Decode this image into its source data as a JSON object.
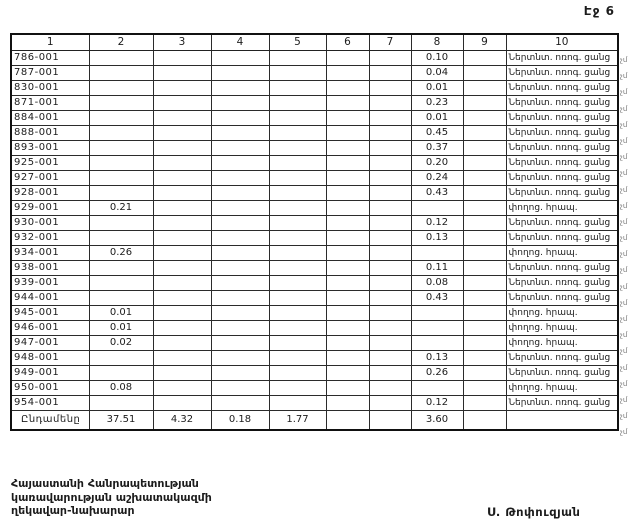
{
  "page": {
    "label": "Էջ 6"
  },
  "table": {
    "headers": [
      "1",
      "2",
      "3",
      "4",
      "5",
      "6",
      "7",
      "8",
      "9",
      "10"
    ],
    "rows": [
      {
        "c1": "786-001",
        "c8": "0.10",
        "c10": "Ներտնտ. ոռոգ. ցանց"
      },
      {
        "c1": "787-001",
        "c8": "0.04",
        "c10": "Ներտնտ. ոռոգ. ցանց"
      },
      {
        "c1": "830-001",
        "c8": "0.01",
        "c10": "Ներտնտ. ոռոգ. ցանց"
      },
      {
        "c1": "871-001",
        "c8": "0.23",
        "c10": "Ներտնտ. ոռոգ. ցանց"
      },
      {
        "c1": "884-001",
        "c8": "0.01",
        "c10": "Ներտնտ. ոռոգ. ցանց"
      },
      {
        "c1": "888-001",
        "c8": "0.45",
        "c10": "Ներտնտ. ոռոգ. ցանց"
      },
      {
        "c1": "893-001",
        "c8": "0.37",
        "c10": "Ներտնտ. ոռոգ. ցանց"
      },
      {
        "c1": "925-001",
        "c8": "0.20",
        "c10": "Ներտնտ. ոռոգ. ցանց"
      },
      {
        "c1": "927-001",
        "c8": "0.24",
        "c10": "Ներտնտ. ոռոգ. ցանց"
      },
      {
        "c1": "928-001",
        "c8": "0.43",
        "c10": "Ներտնտ. ոռոգ. ցանց"
      },
      {
        "c1": "929-001",
        "c2": "0.21",
        "c10": "փողոց. հրապ."
      },
      {
        "c1": "930-001",
        "c8": "0.12",
        "c10": "Ներտնտ. ոռոգ. ցանց"
      },
      {
        "c1": "932-001",
        "c8": "0.13",
        "c10": "Ներտնտ. ոռոգ. ցանց"
      },
      {
        "c1": "934-001",
        "c2": "0.26",
        "c10": "փողոց. հրապ."
      },
      {
        "c1": "938-001",
        "c8": "0.11",
        "c10": "Ներտնտ. ոռոգ. ցանց"
      },
      {
        "c1": "939-001",
        "c8": "0.08",
        "c10": "Ներտնտ. ոռոգ. ցանց"
      },
      {
        "c1": "944-001",
        "c8": "0.43",
        "c10": "Ներտնտ. ոռոգ. ցանց"
      },
      {
        "c1": "945-001",
        "c2": "0.01",
        "c10": "փողոց. հրապ."
      },
      {
        "c1": "946-001",
        "c2": "0.01",
        "c10": "փողոց. հրապ."
      },
      {
        "c1": "947-001",
        "c2": "0.02",
        "c10": "փողոց. հրապ."
      },
      {
        "c1": "948-001",
        "c8": "0.13",
        "c10": "Ներտնտ. ոռոգ. ցանց"
      },
      {
        "c1": "949-001",
        "c8": "0.26",
        "c10": "Ներտնտ. ոռոգ. ցանց"
      },
      {
        "c1": "950-001",
        "c2": "0.08",
        "c10": "փողոց. հրապ."
      },
      {
        "c1": "954-001",
        "c8": "0.12",
        "c10": "Ներտնտ. ոռոգ. ցանց"
      }
    ],
    "total": {
      "label": "Ընդամենը",
      "c2": "37.51",
      "c3": "4.32",
      "c4": "0.18",
      "c5": "1.77",
      "c6": "",
      "c7": "",
      "c8": "3.60",
      "c9": "",
      "c10": ""
    }
  },
  "margin_mark": "չմ",
  "footer": {
    "lines": [
      "Հայաստանի Հանրապետության",
      "կառավարության աշխատակազմի",
      "ղեկավար-նախարար"
    ],
    "signature": "Ս. Թոփուզյան"
  },
  "colors": {
    "ink": "#1c1c1c",
    "paper": "#ffffff"
  }
}
